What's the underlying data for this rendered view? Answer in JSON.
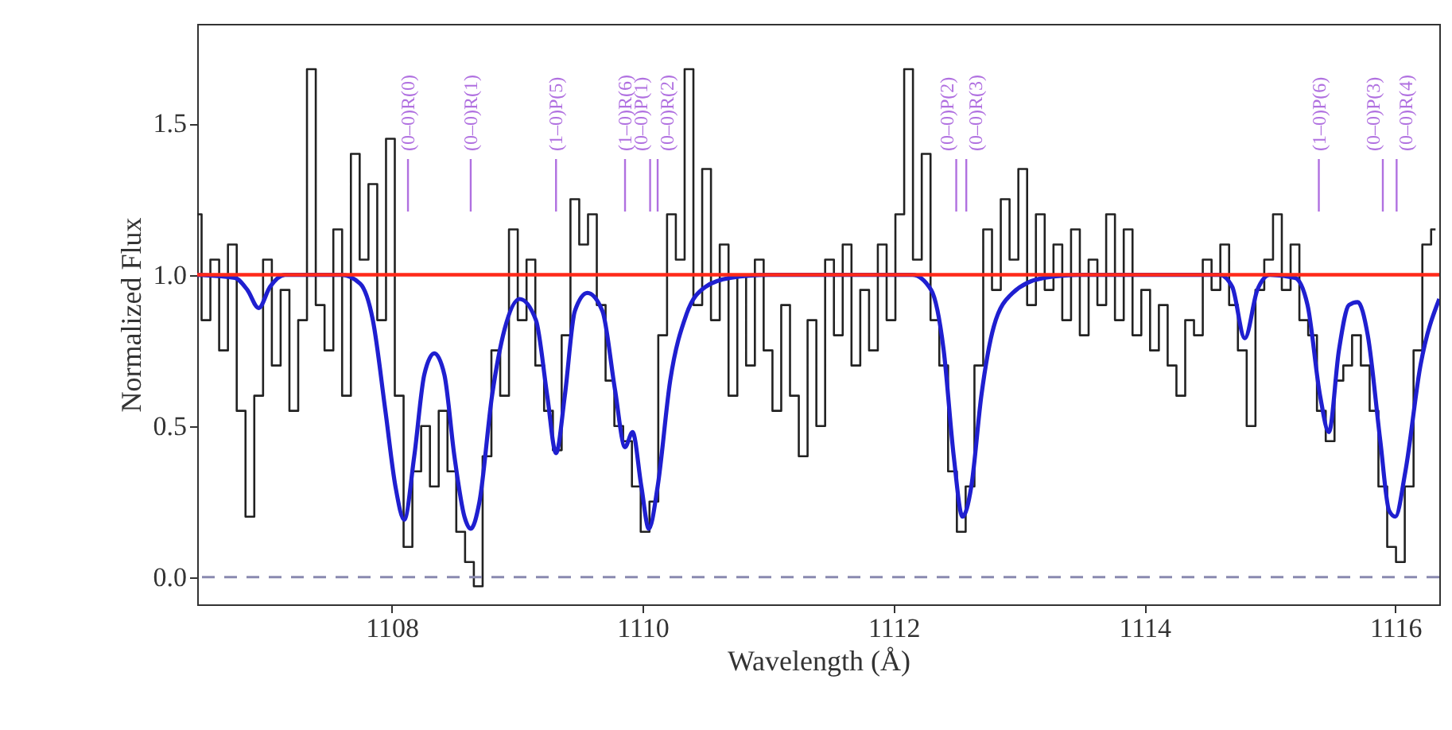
{
  "chart_data": {
    "type": "step",
    "xlabel": "Wavelength (Å)",
    "ylabel": "Normalized Flux",
    "xlim": [
      1106.45,
      1116.35
    ],
    "ylim": [
      -0.09,
      1.83
    ],
    "xticks": [
      1108,
      1110,
      1112,
      1114,
      1116
    ],
    "yticks": [
      {
        "value": 0,
        "label": "0.0"
      },
      {
        "value": 0.5,
        "label": "0.5"
      },
      {
        "value": 1,
        "label": "1.0"
      },
      {
        "value": 1.5,
        "label": "1.5"
      }
    ],
    "series": [
      {
        "color": "#222222",
        "x": [
          1106.45,
          1106.52,
          1106.59,
          1106.66,
          1106.73,
          1106.8,
          1106.87,
          1106.94,
          1107.01,
          1107.08,
          1107.15,
          1107.22,
          1107.29,
          1107.36,
          1107.43,
          1107.5,
          1107.57,
          1107.64,
          1107.71,
          1107.78,
          1107.85,
          1107.92,
          1107.99,
          1108.06,
          1108.13,
          1108.2,
          1108.27,
          1108.34,
          1108.41,
          1108.48,
          1108.55,
          1108.62,
          1108.69,
          1108.76,
          1108.83,
          1108.9,
          1108.97,
          1109.04,
          1109.11,
          1109.18,
          1109.25,
          1109.32,
          1109.39,
          1109.46,
          1109.53,
          1109.6,
          1109.67,
          1109.74,
          1109.81,
          1109.88,
          1109.95,
          1110.02,
          1110.09,
          1110.16,
          1110.23,
          1110.3,
          1110.37,
          1110.44,
          1110.51,
          1110.58,
          1110.65,
          1110.72,
          1110.79,
          1110.86,
          1110.93,
          1111.0,
          1111.07,
          1111.14,
          1111.21,
          1111.28,
          1111.35,
          1111.42,
          1111.49,
          1111.56,
          1111.63,
          1111.7,
          1111.77,
          1111.84,
          1111.91,
          1111.98,
          1112.05,
          1112.12,
          1112.19,
          1112.26,
          1112.33,
          1112.4,
          1112.47,
          1112.54,
          1112.61,
          1112.68,
          1112.75,
          1112.82,
          1112.89,
          1112.96,
          1113.03,
          1113.1,
          1113.17,
          1113.24,
          1113.31,
          1113.38,
          1113.45,
          1113.52,
          1113.59,
          1113.66,
          1113.73,
          1113.8,
          1113.87,
          1113.94,
          1114.01,
          1114.08,
          1114.15,
          1114.22,
          1114.29,
          1114.36,
          1114.43,
          1114.5,
          1114.57,
          1114.64,
          1114.71,
          1114.78,
          1114.85,
          1114.92,
          1114.99,
          1115.06,
          1115.13,
          1115.2,
          1115.27,
          1115.34,
          1115.41,
          1115.48,
          1115.55,
          1115.62,
          1115.69,
          1115.76,
          1115.83,
          1115.9,
          1115.97,
          1116.04,
          1116.11,
          1116.18,
          1116.25,
          1116.32
        ],
        "values": [
          1.2,
          0.85,
          1.05,
          0.75,
          1.1,
          0.55,
          0.2,
          0.6,
          1.05,
          0.7,
          0.95,
          0.55,
          0.85,
          1.68,
          0.9,
          0.75,
          1.15,
          0.6,
          1.4,
          1.05,
          1.3,
          0.85,
          1.45,
          0.6,
          0.1,
          0.35,
          0.5,
          0.3,
          0.55,
          0.35,
          0.15,
          0.05,
          -0.03,
          0.4,
          0.75,
          0.6,
          1.15,
          0.85,
          1.05,
          0.7,
          0.55,
          0.42,
          0.8,
          1.25,
          1.1,
          1.2,
          0.9,
          0.65,
          0.5,
          0.45,
          0.3,
          0.15,
          0.25,
          0.8,
          1.2,
          1.05,
          1.68,
          0.9,
          1.35,
          0.85,
          1.1,
          0.6,
          1.0,
          0.7,
          1.05,
          0.75,
          0.55,
          0.9,
          0.6,
          0.4,
          0.85,
          0.5,
          1.05,
          0.8,
          1.1,
          0.7,
          0.95,
          0.75,
          1.1,
          0.85,
          1.2,
          1.68,
          1.05,
          1.4,
          0.85,
          0.7,
          0.35,
          0.15,
          0.3,
          0.7,
          1.15,
          0.95,
          1.25,
          1.05,
          1.35,
          0.9,
          1.2,
          0.95,
          1.1,
          0.85,
          1.15,
          0.8,
          1.05,
          0.9,
          1.2,
          0.85,
          1.15,
          0.8,
          0.95,
          0.75,
          0.9,
          0.7,
          0.6,
          0.85,
          0.8,
          1.05,
          0.95,
          1.1,
          0.9,
          0.75,
          0.5,
          0.95,
          1.05,
          1.2,
          0.95,
          1.1,
          0.85,
          0.8,
          0.55,
          0.45,
          0.65,
          0.7,
          0.8,
          0.7,
          0.55,
          0.3,
          0.1,
          0.05,
          0.3,
          0.75,
          1.1,
          1.15
        ]
      },
      {
        "type": "line",
        "color": "#1f1fd0",
        "x": [
          1106.45,
          1106.75,
          1106.85,
          1106.94,
          1107.03,
          1107.15,
          1107.6,
          1107.75,
          1107.85,
          1107.95,
          1108.03,
          1108.1,
          1108.18,
          1108.26,
          1108.34,
          1108.42,
          1108.5,
          1108.58,
          1108.63,
          1108.7,
          1108.8,
          1108.9,
          1109.02,
          1109.15,
          1109.24,
          1109.31,
          1109.38,
          1109.46,
          1109.56,
          1109.68,
          1109.78,
          1109.86,
          1109.92,
          1109.99,
          1110.05,
          1110.12,
          1110.22,
          1110.35,
          1110.5,
          1110.7,
          1111.0,
          1112.15,
          1112.3,
          1112.4,
          1112.48,
          1112.55,
          1112.62,
          1112.7,
          1112.8,
          1112.95,
          1113.2,
          1113.5,
          1114.6,
          1114.7,
          1114.8,
          1114.9,
          1115.0,
          1115.2,
          1115.3,
          1115.4,
          1115.47,
          1115.55,
          1115.63,
          1115.7,
          1115.78,
          1115.88,
          1115.95,
          1116.0,
          1116.08,
          1116.2,
          1116.35
        ],
        "values": [
          1.0,
          0.99,
          0.95,
          0.89,
          0.96,
          1.0,
          1.0,
          0.97,
          0.85,
          0.55,
          0.3,
          0.19,
          0.4,
          0.67,
          0.74,
          0.67,
          0.4,
          0.2,
          0.16,
          0.25,
          0.6,
          0.82,
          0.92,
          0.85,
          0.6,
          0.41,
          0.6,
          0.88,
          0.94,
          0.88,
          0.62,
          0.43,
          0.48,
          0.3,
          0.16,
          0.3,
          0.65,
          0.87,
          0.96,
          0.99,
          1.0,
          1.0,
          0.95,
          0.75,
          0.4,
          0.2,
          0.3,
          0.6,
          0.83,
          0.94,
          0.99,
          1.0,
          1.0,
          0.96,
          0.79,
          0.95,
          1.0,
          0.99,
          0.9,
          0.6,
          0.48,
          0.75,
          0.9,
          0.91,
          0.8,
          0.45,
          0.22,
          0.2,
          0.35,
          0.7,
          0.92
        ]
      }
    ],
    "ref_lines": [
      {
        "axis": "y",
        "value": 1.0,
        "color": "#ff2a1a",
        "line_style": "solid"
      },
      {
        "axis": "y",
        "value": 0.0,
        "color": "#8a8ab0",
        "line_style": "dashed"
      }
    ],
    "annotations": [
      {
        "text": "(0–0)R(0)",
        "x": 1108.13
      },
      {
        "text": "(0–0)R(1)",
        "x": 1108.63
      },
      {
        "text": "(1–0)P(5)",
        "x": 1109.31
      },
      {
        "text": "(1–0)R(6)",
        "x": 1109.86
      },
      {
        "text": "(0–0)P(1)",
        "x": 1110.06
      },
      {
        "text": "(0–0)R(2)",
        "x": 1110.12
      },
      {
        "text": "(0–0)P(2)",
        "x": 1112.5
      },
      {
        "text": "(0–0)R(3)",
        "x": 1112.58
      },
      {
        "text": "(1–0)P(6)",
        "x": 1115.39
      },
      {
        "text": "(0–0)P(3)",
        "x": 1115.9
      },
      {
        "text": "(0–0)R(4)",
        "x": 1116.01
      }
    ]
  }
}
